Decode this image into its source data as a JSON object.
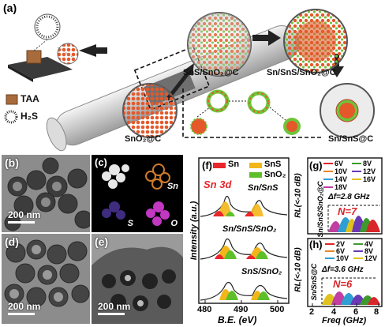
{
  "panel_labels": {
    "a": "(a)",
    "b": "(b)",
    "c": "(c)",
    "d": "(d)",
    "e": "(e)",
    "f": "(f)",
    "g": "(g)",
    "h": "(h)"
  },
  "schematic": {
    "reagent_1": "TAA",
    "reagent_2": "H₂S",
    "stage_1": "SnO₂@C",
    "stage_2": "SnS/SnO₂@C",
    "stage_3": "Sn/SnS/SnO₂@C",
    "stage_4": "Sn/SnS@C"
  },
  "tem": {
    "scale_b": "200 nm",
    "scale_d": "200 nm",
    "scale_e": "200 nm"
  },
  "eds_map": {
    "element_sn": "Sn",
    "element_s": "S",
    "element_o": "O"
  },
  "xps": {
    "legend": [
      "Sn",
      "SnS",
      "SnO₂"
    ],
    "legend_colors": [
      "#e8262b",
      "#f3b619",
      "#5fbf2a"
    ],
    "region": "Sn 3d",
    "curve_1": "Sn/SnS",
    "curve_2": "Sn/SnS/SnO₂",
    "curve_3": "SnS/SnO₂",
    "ylabel": "Intensity (a.u.)",
    "xlabel": "B.E. (eV)",
    "x_ticks": [
      "480",
      "490",
      "500"
    ]
  },
  "rl_g": {
    "ylabel": "RL(<-10 dB)",
    "sample": "Sn/SnS/SnO₂@C",
    "legend": [
      "6V",
      "8V",
      "10V",
      "12V",
      "14V",
      "16V",
      "18V"
    ],
    "legend_colors": [
      "#d8262a",
      "#3e9a2f",
      "#e9862a",
      "#6a39b6",
      "#2e9fd3",
      "#e0c21c",
      "#c23ea0"
    ],
    "bandwidth": "Δf=2.8 GHz",
    "n_label": "N=7"
  },
  "rl_h": {
    "ylabel": "RL(<-10 dB)",
    "sample": "Sn/SnS@C",
    "legend": [
      "2V",
      "4V",
      "6V",
      "8V",
      "10V",
      "12V"
    ],
    "legend_colors": [
      "#d8262a",
      "#3e9a2f",
      "#e9862a",
      "#6a39b6",
      "#2e9fd3",
      "#e0c21c"
    ],
    "bandwidth": "Δf=3.6 GHz",
    "n_label": "N=6",
    "xlabel": "Freq (GHz)",
    "x_ticks": [
      "2",
      "4",
      "6",
      "8"
    ]
  }
}
